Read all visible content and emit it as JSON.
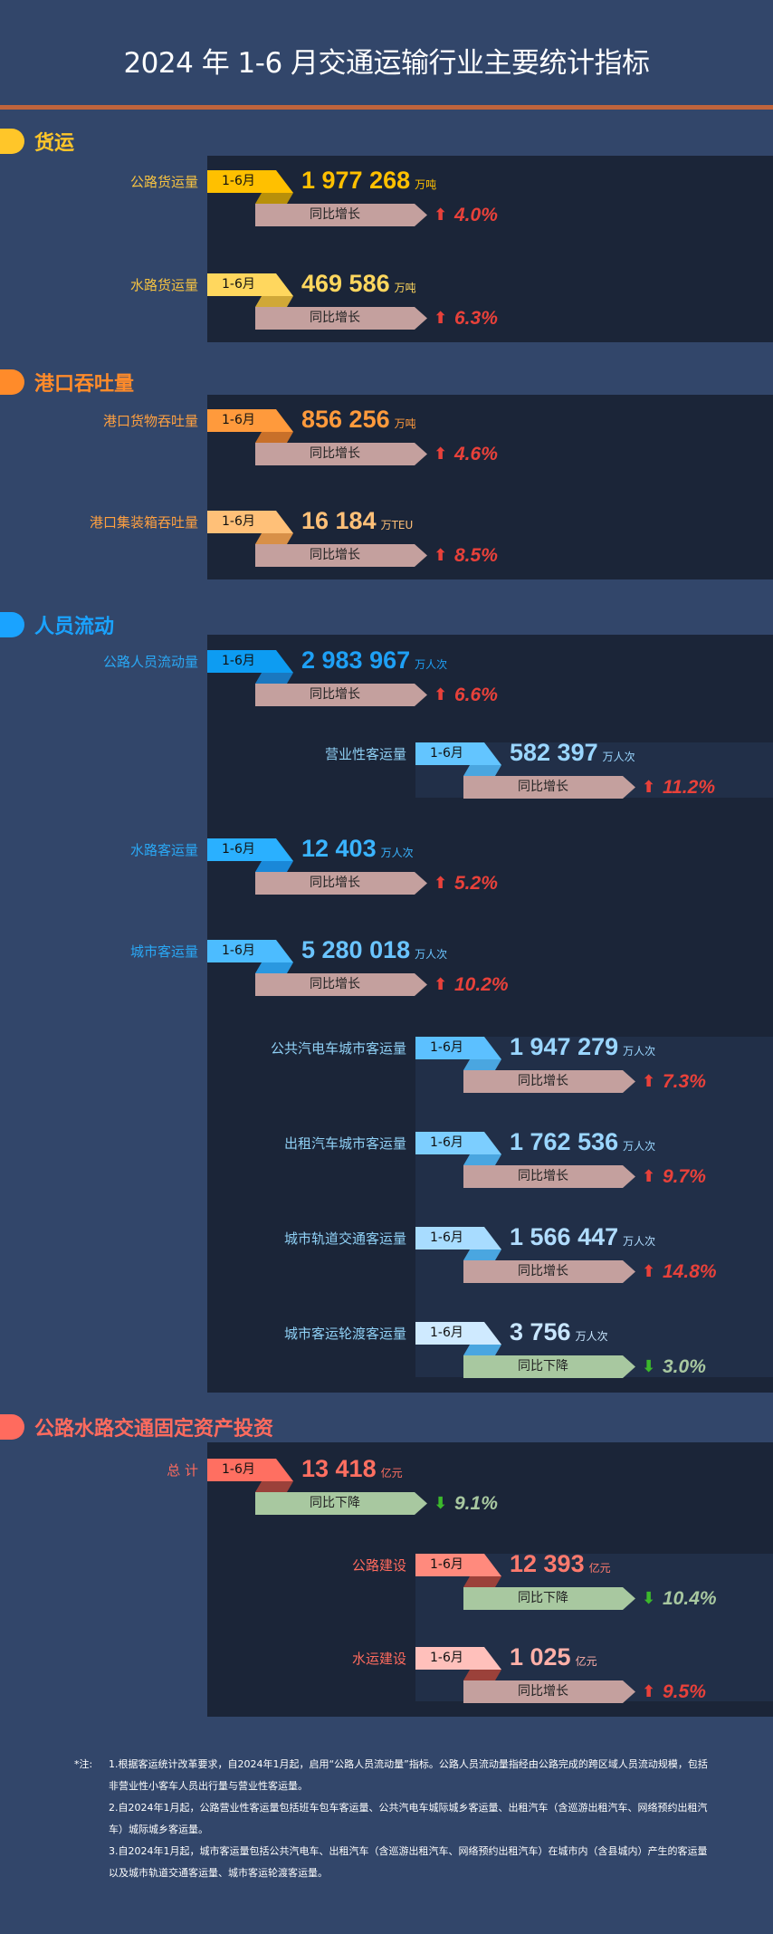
{
  "title": "2024 年 1-6 月交通运输行业主要统计指标",
  "period_label": "1-6月",
  "yoy_up_label": "同比增长",
  "yoy_down_label": "同比下降",
  "colors": {
    "background": "#32466a",
    "panel": "#1b2538",
    "subpanel": "#212f48",
    "rule": "#c0643c",
    "up": "#e8413a",
    "down_arrow": "#3cb82c",
    "down_text": "#a8c8a0",
    "yoy_up_bar": "#c4a09e",
    "yoy_down_bar": "#a8c8a0"
  },
  "sections": {
    "freight": {
      "title": "货运",
      "color": "#ffc629",
      "rows": [
        {
          "label": "公路货运量",
          "value": "1 977 268",
          "unit": "万吨",
          "direction": "up",
          "change": "4.0%"
        },
        {
          "label": "水路货运量",
          "value": "469 586",
          "unit": "万吨",
          "direction": "up",
          "change": "6.3%"
        }
      ]
    },
    "port": {
      "title": "港口吞吐量",
      "color": "#ff8b2a",
      "rows": [
        {
          "label": "港口货物吞吐量",
          "value": "856 256",
          "unit": "万吨",
          "direction": "up",
          "change": "4.6%"
        },
        {
          "label": "港口集装箱吞吐量",
          "value": "16 184",
          "unit": "万TEU",
          "direction": "up",
          "change": "8.5%"
        }
      ]
    },
    "passenger": {
      "title": "人员流动",
      "color": "#1aa3ff",
      "rows": [
        {
          "label": "公路人员流动量",
          "value": "2 983 967",
          "unit": "万人次",
          "direction": "up",
          "change": "6.6%"
        },
        {
          "label": "营业性客运量",
          "value": "582 397",
          "unit": "万人次",
          "direction": "up",
          "change": "11.2%"
        },
        {
          "label": "水路客运量",
          "value": "12 403",
          "unit": "万人次",
          "direction": "up",
          "change": "5.2%"
        },
        {
          "label": "城市客运量",
          "value": "5 280 018",
          "unit": "万人次",
          "direction": "up",
          "change": "10.2%"
        },
        {
          "label": "公共汽电车城市客运量",
          "value": "1 947 279",
          "unit": "万人次",
          "direction": "up",
          "change": "7.3%"
        },
        {
          "label": "出租汽车城市客运量",
          "value": "1 762 536",
          "unit": "万人次",
          "direction": "up",
          "change": "9.7%"
        },
        {
          "label": "城市轨道交通客运量",
          "value": "1 566 447",
          "unit": "万人次",
          "direction": "up",
          "change": "14.8%"
        },
        {
          "label": "城市客运轮渡客运量",
          "value": "3 756",
          "unit": "万人次",
          "direction": "down",
          "change": "3.0%"
        }
      ]
    },
    "investment": {
      "title": "公路水路交通固定资产投资",
      "color": "#ff6b5e",
      "rows": [
        {
          "label": "总 计",
          "value": "13 418",
          "unit": "亿元",
          "direction": "down",
          "change": "9.1%"
        },
        {
          "label": "公路建设",
          "value": "12 393",
          "unit": "亿元",
          "direction": "down",
          "change": "10.4%"
        },
        {
          "label": "水运建设",
          "value": "1 025",
          "unit": "亿元",
          "direction": "up",
          "change": "9.5%"
        }
      ]
    }
  },
  "notes": {
    "prefix": "*注:",
    "items": [
      "1.根据客运统计改革要求，自2024年1月起，启用“公路人员流动量”指标。公路人员流动量指经由公路完成的跨区域人员流动规模，包括非营业性小客车人员出行量与营业性客运量。",
      "2.自2024年1月起，公路营业性客运量包括班车包车客运量、公共汽电车城际城乡客运量、出租汽车（含巡游出租汽车、网络预约出租汽车）城际城乡客运量。",
      "3.自2024年1月起，城市客运量包括公共汽电车、出租汽车（含巡游出租汽车、网络预约出租汽车）在城市内（含县城内）产生的客运量以及城市轨道交通客运量、城市客运轮渡客运量。"
    ]
  }
}
